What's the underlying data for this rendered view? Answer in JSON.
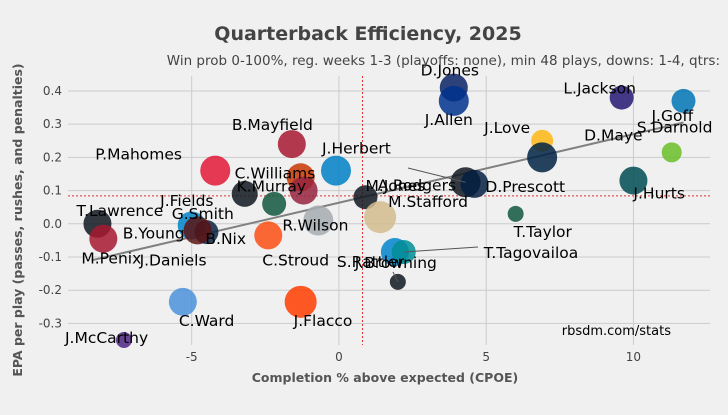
{
  "chart_data": {
    "type": "scatter",
    "title": "Quarterback Efficiency, 2025",
    "subtitle": "Win prob 0-100%, reg. weeks 1-3 (playoffs: none), min 48 plays, downs: 1-4, qtrs:",
    "xlabel": "Completion % above expected (CPOE)",
    "ylabel": "EPA per play (passes, rushes, and penalties)",
    "xlim": [
      -9.2,
      12.6
    ],
    "ylim": [
      -0.365,
      0.445
    ],
    "xticks": [
      -5,
      0,
      5,
      10
    ],
    "yticks": [
      -0.3,
      -0.2,
      -0.1,
      0.0,
      0.1,
      0.2,
      0.3,
      0.4
    ],
    "xtick_labels": [
      "-5",
      "0",
      "5",
      "10"
    ],
    "ytick_labels": [
      "-0.3",
      "-0.2",
      "-0.1",
      "0.0",
      "0.1",
      "0.2",
      "0.3",
      "0.4"
    ],
    "grid": true,
    "mean_lines": {
      "x": 0.8,
      "y": 0.084
    },
    "trend_line": {
      "x1": -8.4,
      "y1": -0.11,
      "x2": 11.7,
      "y2": 0.305
    },
    "credit": "rbsdm.com/stats",
    "points": [
      {
        "name": "D.Jones",
        "x": 3.9,
        "y": 0.41,
        "color": "#0b2265",
        "label": "D.Jones"
      },
      {
        "name": "L.Jackson",
        "x": 9.6,
        "y": 0.38,
        "color": "#241773",
        "label": "L.Jackson"
      },
      {
        "name": "J.Allen",
        "x": 3.9,
        "y": 0.37,
        "color": "#00338d",
        "label": "J.Allen"
      },
      {
        "name": "J.Goff",
        "x": 11.7,
        "y": 0.37,
        "color": "#0076b6",
        "label": "J.Goff"
      },
      {
        "name": "J.Love",
        "x": 6.9,
        "y": 0.25,
        "color": "#ffb612",
        "label": "J.Love"
      },
      {
        "name": "B.Mayfield",
        "x": -1.6,
        "y": 0.24,
        "color": "#a71930",
        "label": "B.Mayfield"
      },
      {
        "name": "J.Herbert",
        "x": -0.1,
        "y": 0.16,
        "color": "#0080c6",
        "label": "J.Herbert"
      },
      {
        "name": "S.Darnold",
        "x": 11.3,
        "y": 0.215,
        "color": "#69be28",
        "label": "S.Darnold"
      },
      {
        "name": "A.Rodgers",
        "x": 4.3,
        "y": 0.125,
        "color": "#101820",
        "label": "A.Rodgers"
      },
      {
        "name": "D.Maye",
        "x": 6.9,
        "y": 0.2,
        "color": "#002244",
        "label": "D.Maye"
      },
      {
        "name": "P.Mahomes",
        "x": -4.2,
        "y": 0.16,
        "color": "#e31837",
        "label": "P.Mahomes"
      },
      {
        "name": "C.Williams",
        "x": -1.3,
        "y": 0.14,
        "color": "#c83803",
        "label": "C.Williams"
      },
      {
        "name": "D.Prescott",
        "x": 4.6,
        "y": 0.12,
        "color": "#041e42",
        "label": "D.Prescott"
      },
      {
        "name": "J.Hurts",
        "x": 10.0,
        "y": 0.13,
        "color": "#004c54",
        "label": "J.Hurts"
      },
      {
        "name": "J.Fields",
        "x": -2.2,
        "y": 0.06,
        "color": "#125740",
        "label": "J.Fields"
      },
      {
        "name": "K.Murray",
        "x": -1.2,
        "y": 0.1,
        "color": "#97233f",
        "label": "K.Murray"
      },
      {
        "name": "M.Jones",
        "x": 0.9,
        "y": 0.08,
        "color": "#101820",
        "label": "M.Jones"
      },
      {
        "name": "G.Smith",
        "x": -3.2,
        "y": 0.09,
        "color": "#101820",
        "label": "G.Smith"
      },
      {
        "name": "M.Stafford",
        "x": 1.4,
        "y": 0.02,
        "color": "#d3bc8d",
        "label": "M.Stafford"
      },
      {
        "name": "T.Lawrence",
        "x": -8.2,
        "y": 0.0,
        "color": "#101820",
        "label": "T.Lawrence"
      },
      {
        "name": "B.Young",
        "x": -5.0,
        "y": -0.005,
        "color": "#0085ca",
        "label": "B.Young"
      },
      {
        "name": "B.Nix",
        "x": -4.5,
        "y": -0.025,
        "color": "#0a2343",
        "label": "B.Nix"
      },
      {
        "name": "T.Taylor",
        "x": 6.0,
        "y": 0.03,
        "color": "#125740",
        "label": "T.Taylor"
      },
      {
        "name": "R.Wilson",
        "x": -0.7,
        "y": 0.01,
        "color": "#a5acaf",
        "label": "R.Wilson"
      },
      {
        "name": "J.Daniels",
        "x": -4.8,
        "y": -0.02,
        "color": "#5a1414",
        "label": "J.Daniels"
      },
      {
        "name": "C.Stroud",
        "x": -2.4,
        "y": -0.035,
        "color": "#fb4f14",
        "label": "C.Stroud"
      },
      {
        "name": "S.Rattler",
        "x": 1.9,
        "y": -0.085,
        "color": "#0085ca",
        "label": "S.Rattler"
      },
      {
        "name": "T.Tagovailoa",
        "x": 2.2,
        "y": -0.085,
        "color": "#008e97",
        "label": "T.Tagovailoa"
      },
      {
        "name": "M.Penix",
        "x": -8.0,
        "y": -0.045,
        "color": "#a71930",
        "label": "M.Penix"
      },
      {
        "name": "J.Browning",
        "x": 2.0,
        "y": -0.175,
        "color": "#101820",
        "label": "J.Browning"
      },
      {
        "name": "C.Ward",
        "x": -5.3,
        "y": -0.235,
        "color": "#4b92db",
        "label": "C.Ward"
      },
      {
        "name": "J.Flacco",
        "x": -1.3,
        "y": -0.235,
        "color": "#ff3c00",
        "label": "J.Flacco"
      },
      {
        "name": "J.McCarthy",
        "x": -7.3,
        "y": -0.35,
        "color": "#4f2683",
        "label": "J.McCarthy"
      }
    ]
  }
}
